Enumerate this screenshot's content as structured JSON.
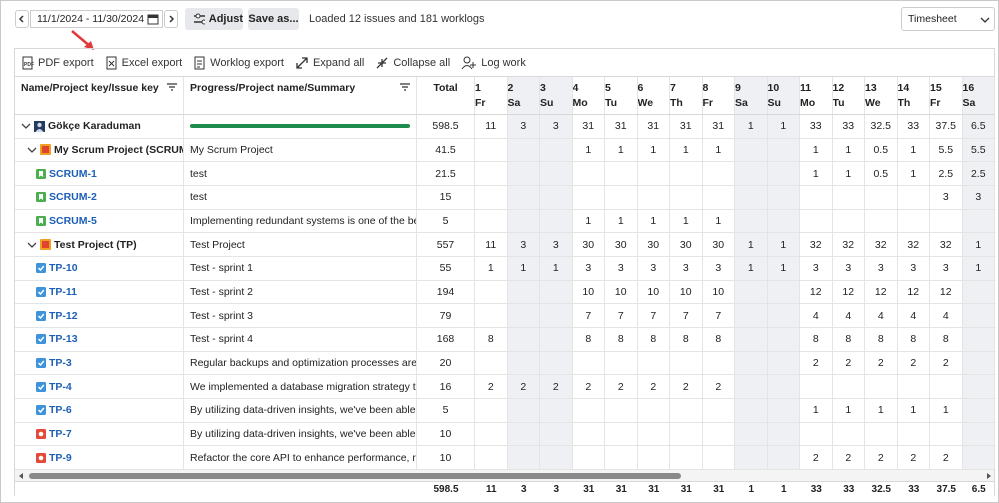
{
  "toolbar": {
    "date_range": "11/1/2024 - 11/30/2024",
    "adjust": "Adjust",
    "save_as": "Save as...",
    "status": "Loaded 12 issues and 181 worklogs",
    "view": "Timesheet"
  },
  "actions": [
    "PDF export",
    "Excel export",
    "Worklog export",
    "Expand all",
    "Collapse all",
    "Log work"
  ],
  "table": {
    "columns": {
      "name": "Name/Project key/Issue key",
      "summary": "Progress/Project name/Summary",
      "total": "Total",
      "days": [
        {
          "day": 1,
          "weekday": "Fr"
        },
        {
          "day": 2,
          "weekday": "Sa"
        },
        {
          "day": 3,
          "weekday": "Su"
        },
        {
          "day": 4,
          "weekday": "Mo"
        },
        {
          "day": 5,
          "weekday": "Tu"
        },
        {
          "day": 6,
          "weekday": "We"
        },
        {
          "day": 7,
          "weekday": "Th"
        },
        {
          "day": 8,
          "weekday": "Fr"
        },
        {
          "day": 9,
          "weekday": "Sa"
        },
        {
          "day": 10,
          "weekday": "Su"
        },
        {
          "day": 11,
          "weekday": "Mo"
        },
        {
          "day": 12,
          "weekday": "Tu"
        },
        {
          "day": 13,
          "weekday": "We"
        },
        {
          "day": 14,
          "weekday": "Th"
        },
        {
          "day": 15,
          "weekday": "Fr"
        },
        {
          "day": 16,
          "weekday": "Sa"
        }
      ]
    },
    "rows": [
      {
        "icon": "user",
        "name": "Gökçe Karaduman",
        "total": 598.5,
        "cells": [
          11,
          3,
          3,
          31,
          31,
          31,
          31,
          31,
          1,
          1,
          33,
          33,
          32.5,
          33,
          37.5,
          6.5
        ]
      },
      {
        "icon": "project",
        "name": "My Scrum Project (SCRUM)",
        "summary": "My Scrum Project",
        "total": 41.5,
        "cells": [
          null,
          null,
          null,
          1,
          1,
          1,
          1,
          1,
          null,
          null,
          1,
          1,
          0.5,
          1,
          5.5,
          5.5
        ]
      },
      {
        "icon": "story",
        "name": "SCRUM-1",
        "summary": "test",
        "total": 21.5,
        "cells": [
          null,
          null,
          null,
          null,
          null,
          null,
          null,
          null,
          null,
          null,
          1,
          1,
          0.5,
          1,
          2.5,
          2.5
        ]
      },
      {
        "icon": "story",
        "name": "SCRUM-2",
        "summary": "test",
        "total": 15,
        "cells": [
          null,
          null,
          null,
          null,
          null,
          null,
          null,
          null,
          null,
          null,
          null,
          null,
          null,
          null,
          3,
          3
        ]
      },
      {
        "icon": "story",
        "name": "SCRUM-5",
        "summary": "Implementing redundant systems is one of the best ...",
        "total": 5,
        "cells": [
          null,
          null,
          null,
          1,
          1,
          1,
          1,
          1,
          null,
          null,
          null,
          null,
          null,
          null,
          null,
          null
        ]
      },
      {
        "icon": "project",
        "name": "Test Project (TP)",
        "summary": "Test Project",
        "total": 557,
        "cells": [
          11,
          3,
          3,
          30,
          30,
          30,
          30,
          30,
          1,
          1,
          32,
          32,
          32,
          32,
          32,
          1
        ]
      },
      {
        "icon": "task",
        "name": "TP-10",
        "summary": "Test - sprint 1",
        "total": 55,
        "cells": [
          1,
          1,
          1,
          3,
          3,
          3,
          3,
          3,
          1,
          1,
          3,
          3,
          3,
          3,
          3,
          1
        ]
      },
      {
        "icon": "task",
        "name": "TP-11",
        "summary": "Test - sprint 2",
        "total": 194,
        "cells": [
          null,
          null,
          null,
          10,
          10,
          10,
          10,
          10,
          null,
          null,
          12,
          12,
          12,
          12,
          12,
          null
        ]
      },
      {
        "icon": "task",
        "name": "TP-12",
        "summary": "Test - sprint 3",
        "total": 79,
        "cells": [
          null,
          null,
          null,
          7,
          7,
          7,
          7,
          7,
          null,
          null,
          4,
          4,
          4,
          4,
          4,
          null
        ]
      },
      {
        "icon": "task",
        "name": "TP-13",
        "summary": "Test - sprint 4",
        "total": 168,
        "cells": [
          8,
          null,
          null,
          8,
          8,
          8,
          8,
          8,
          null,
          null,
          8,
          8,
          8,
          8,
          8,
          null
        ]
      },
      {
        "icon": "task",
        "name": "TP-3",
        "summary": "Regular backups and optimization processes are nec...",
        "total": 20,
        "cells": [
          null,
          null,
          null,
          null,
          null,
          null,
          null,
          null,
          null,
          null,
          2,
          2,
          2,
          2,
          2,
          null
        ]
      },
      {
        "icon": "task",
        "name": "TP-4",
        "summary": "We implemented a database migration strategy that ...",
        "total": 16,
        "cells": [
          2,
          2,
          2,
          2,
          2,
          2,
          2,
          2,
          null,
          null,
          null,
          null,
          null,
          null,
          null,
          null
        ]
      },
      {
        "icon": "task",
        "name": "TP-6",
        "summary": "By utilizing data-driven insights, we've been able to r...",
        "total": 5,
        "cells": [
          null,
          null,
          null,
          null,
          null,
          null,
          null,
          null,
          null,
          null,
          1,
          1,
          1,
          1,
          1,
          null
        ]
      },
      {
        "icon": "bug",
        "name": "TP-7",
        "summary": "By utilizing data-driven insights, we've been able to r...",
        "total": 10,
        "cells": [
          null,
          null,
          null,
          null,
          null,
          null,
          null,
          null,
          null,
          null,
          null,
          null,
          null,
          null,
          null,
          null
        ]
      },
      {
        "icon": "bug",
        "name": "TP-9",
        "summary": "Refactor the core API to enhance performance, reduc...",
        "total": 10,
        "cells": [
          null,
          null,
          null,
          null,
          null,
          null,
          null,
          null,
          null,
          null,
          2,
          2,
          2,
          2,
          2,
          null
        ]
      }
    ],
    "footer": {
      "total": 598.5,
      "cells": [
        11,
        3,
        3,
        31,
        31,
        31,
        31,
        31,
        1,
        1,
        33,
        33,
        32.5,
        33,
        37.5,
        6.5
      ]
    }
  }
}
